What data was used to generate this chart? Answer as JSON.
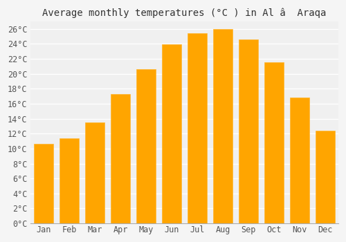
{
  "title": "Average monthly temperatures (°C ) in Al â  Araqa",
  "months": [
    "Jan",
    "Feb",
    "Mar",
    "Apr",
    "May",
    "Jun",
    "Jul",
    "Aug",
    "Sep",
    "Oct",
    "Nov",
    "Dec"
  ],
  "values": [
    10.6,
    11.4,
    13.5,
    17.3,
    20.6,
    23.9,
    25.4,
    26.0,
    24.6,
    21.5,
    16.8,
    12.4
  ],
  "bar_color": "#FFA500",
  "bar_edge_color": "#FFB732",
  "ylim": [
    0,
    27
  ],
  "ytick_step": 2,
  "background_color": "#f5f5f5",
  "plot_bg_color": "#f0f0f0",
  "grid_color": "#ffffff",
  "title_fontsize": 10,
  "tick_fontsize": 8.5,
  "font_family": "monospace"
}
